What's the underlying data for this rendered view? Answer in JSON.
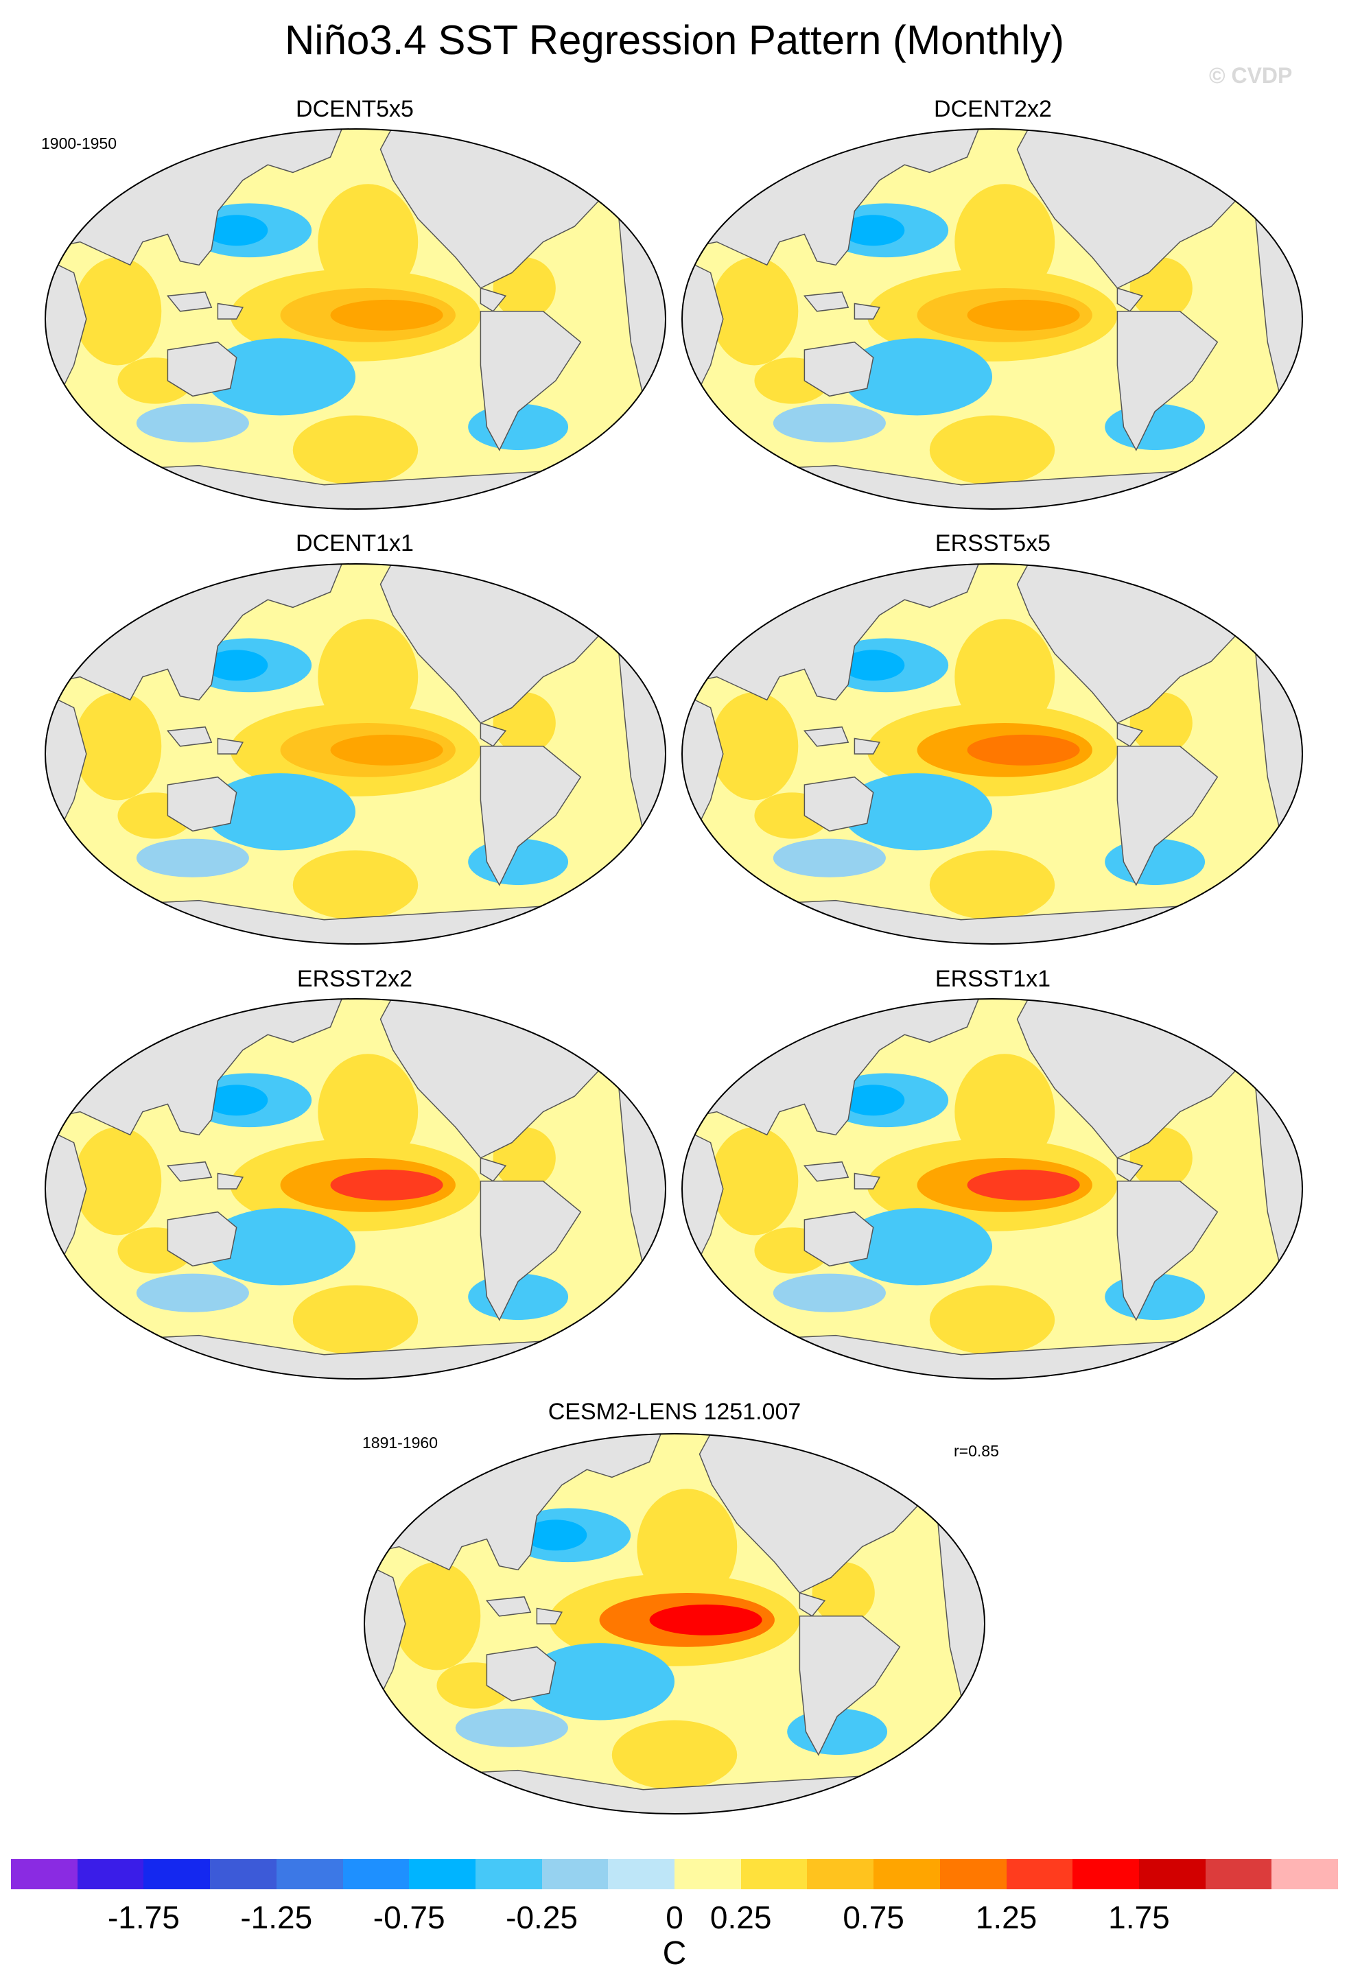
{
  "title": "Niño3.4 SST Regression Pattern (Monthly)",
  "watermark": "© CVDP",
  "obs_period": "1900-1950",
  "panels": [
    {
      "name": "DCENT5x5",
      "peak_level": 0.75
    },
    {
      "name": "DCENT2x2",
      "peak_level": 0.75
    },
    {
      "name": "DCENT1x1",
      "peak_level": 0.75
    },
    {
      "name": "ERSST5x5",
      "peak_level": 1.0
    },
    {
      "name": "ERSST2x2",
      "peak_level": 1.25
    },
    {
      "name": "ERSST1x1",
      "peak_level": 1.25
    }
  ],
  "model": {
    "name": "CESM2-LENS 1251.007",
    "period": "1891-1960",
    "correlation": "r=0.85",
    "peak_level": 1.5
  },
  "colorbar": {
    "unit": "C",
    "tick_labels": [
      "-1.75",
      "-1.25",
      "-0.75",
      "-0.25",
      "0",
      "0.25",
      "0.75",
      "1.25",
      "1.75"
    ],
    "colors": [
      "#8a2be2",
      "#3a1de8",
      "#1428f0",
      "#3c5ad8",
      "#3c78e6",
      "#1e90ff",
      "#00b4ff",
      "#46c8f8",
      "#96d2f0",
      "#bee6f8",
      "#fffaa0",
      "#ffe13c",
      "#ffc31e",
      "#ffa500",
      "#ff7800",
      "#ff3c1e",
      "#ff0000",
      "#d20000",
      "#dc3c3c",
      "#ffb4b4"
    ]
  }
}
